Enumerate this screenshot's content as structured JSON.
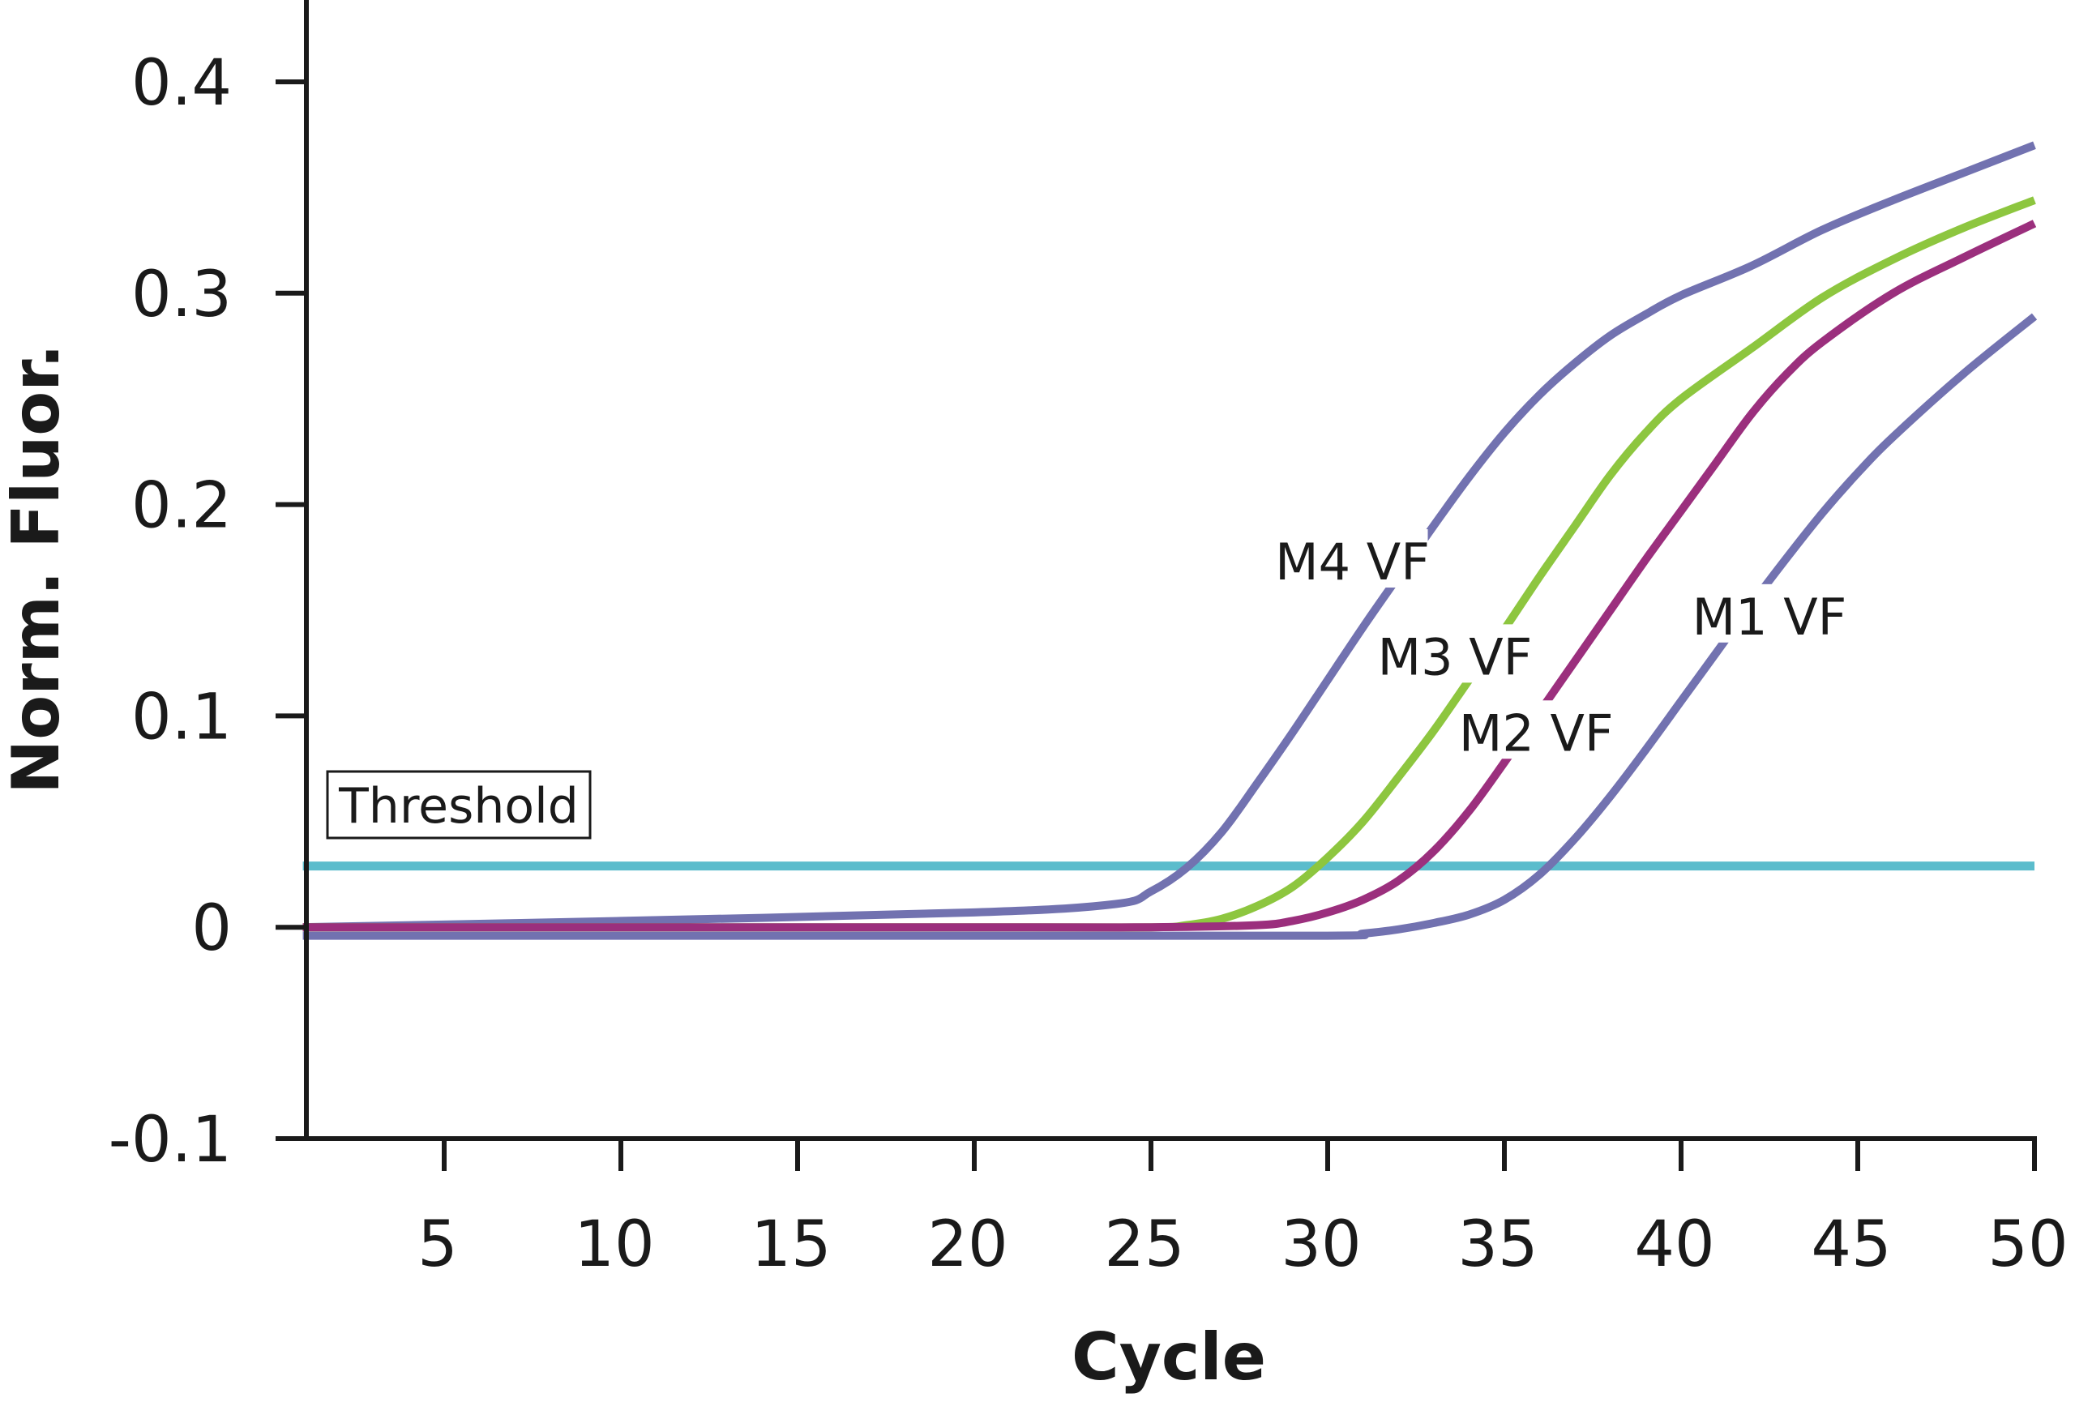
{
  "chart_data": {
    "type": "line",
    "xlabel": "Cycle",
    "ylabel": "Norm. Fluor.",
    "xlim": [
      1,
      50
    ],
    "ylim": [
      -0.1,
      0.42
    ],
    "x_ticks": [
      5,
      10,
      15,
      20,
      25,
      30,
      35,
      40,
      45,
      50
    ],
    "x_tick_labels": [
      "5",
      "10",
      "15",
      "20",
      "25",
      "30",
      "35",
      "40",
      "45",
      "50"
    ],
    "y_ticks": [
      -0.1,
      0,
      0.1,
      0.2,
      0.3,
      0.4
    ],
    "y_tick_labels": [
      "-0.1",
      "0",
      "0.1",
      "0.2",
      "0.3",
      "0.4"
    ],
    "grid": false,
    "threshold": {
      "label": "Threshold",
      "value": 0.029,
      "color": "#5bbccc"
    },
    "series": [
      {
        "name": "M4 VF",
        "color": "#7272b0",
        "x": [
          1,
          10,
          20,
          24,
          25,
          26,
          27,
          28,
          29,
          30,
          31,
          32,
          33,
          34,
          35,
          36,
          37,
          38,
          39,
          40,
          42,
          44,
          46,
          48,
          50
        ],
        "y": [
          0.0,
          0.003,
          0.007,
          0.011,
          0.017,
          0.028,
          0.045,
          0.068,
          0.092,
          0.117,
          0.142,
          0.166,
          0.19,
          0.213,
          0.234,
          0.252,
          0.267,
          0.28,
          0.29,
          0.299,
          0.313,
          0.33,
          0.344,
          0.357,
          0.37
        ]
      },
      {
        "name": "M3 VF",
        "color": "#8dc63f",
        "x": [
          1,
          20,
          25,
          26,
          27,
          28,
          29,
          30,
          31,
          32,
          33,
          34,
          35,
          36,
          37,
          38,
          39,
          40,
          42,
          44,
          46,
          48,
          50
        ],
        "y": [
          0.0,
          0.0,
          0.0,
          0.001,
          0.004,
          0.01,
          0.019,
          0.033,
          0.05,
          0.071,
          0.093,
          0.117,
          0.141,
          0.166,
          0.19,
          0.214,
          0.234,
          0.25,
          0.274,
          0.298,
          0.316,
          0.331,
          0.344
        ]
      },
      {
        "name": "M2 VF",
        "color": "#9b2f7d",
        "x": [
          1,
          20,
          25,
          28,
          29,
          30,
          31,
          32,
          33,
          34,
          35,
          36,
          37,
          38,
          39,
          40,
          41,
          42,
          43,
          44,
          46,
          48,
          50
        ],
        "y": [
          0.0,
          0.0,
          0.0,
          0.001,
          0.003,
          0.007,
          0.013,
          0.022,
          0.036,
          0.055,
          0.078,
          0.102,
          0.126,
          0.15,
          0.174,
          0.197,
          0.22,
          0.243,
          0.262,
          0.277,
          0.3,
          0.317,
          0.333
        ]
      },
      {
        "name": "M1 VF",
        "color": "#7272b0",
        "x": [
          1,
          20,
          30,
          31,
          32,
          33,
          34,
          35,
          36,
          37,
          38,
          39,
          40,
          41,
          42,
          43,
          44,
          45,
          46,
          48,
          50
        ],
        "y": [
          -0.004,
          -0.004,
          -0.004,
          -0.003,
          -0.001,
          0.002,
          0.006,
          0.013,
          0.025,
          0.042,
          0.062,
          0.084,
          0.107,
          0.13,
          0.153,
          0.175,
          0.196,
          0.215,
          0.232,
          0.262,
          0.289
        ]
      }
    ],
    "annotations": [
      {
        "text": "M4 VF",
        "x": 30.7,
        "y": 0.173
      },
      {
        "text": "M3 VF",
        "x": 33.6,
        "y": 0.128
      },
      {
        "text": "M2 VF",
        "x": 35.9,
        "y": 0.092
      },
      {
        "text": "M1 VF",
        "x": 42.5,
        "y": 0.147
      }
    ]
  }
}
